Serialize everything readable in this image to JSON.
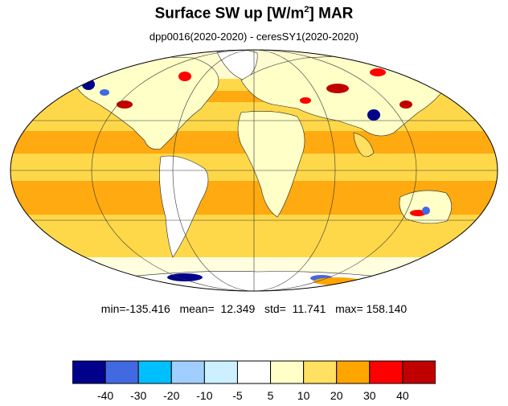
{
  "title": {
    "main": "Surface SW up [W/m",
    "superscript": "2",
    "suffix": "]  MAR"
  },
  "subtitle": "dpp0016(2020-2020) - ceresSY1(2020-2020)",
  "stats": {
    "min_label": "min=",
    "min": "-135.416",
    "mean_label": "mean=",
    "mean": "12.349",
    "std_label": "std=",
    "std": "11.741",
    "max_label": "max=",
    "max": "158.140"
  },
  "colorbar": {
    "colors": [
      "#00008b",
      "#4169e1",
      "#00bfff",
      "#a0cfff",
      "#ccf0ff",
      "#ffffff",
      "#ffffc8",
      "#ffe060",
      "#ffa500",
      "#ff0000",
      "#c00000"
    ],
    "labels": [
      "-40",
      "-30",
      "-20",
      "-10",
      "-5",
      "5",
      "10",
      "20",
      "30",
      "40"
    ]
  },
  "map": {
    "projection": "mollweide",
    "ocean_color": "#ffd84a",
    "tropical_band_color": "#ffaa10",
    "land_colors": [
      "#ffffc8",
      "#ffe060",
      "#ffffff",
      "#ccf0ff"
    ],
    "anomaly_colors": [
      "#c00000",
      "#ff0000",
      "#00008b",
      "#4169e1"
    ]
  }
}
